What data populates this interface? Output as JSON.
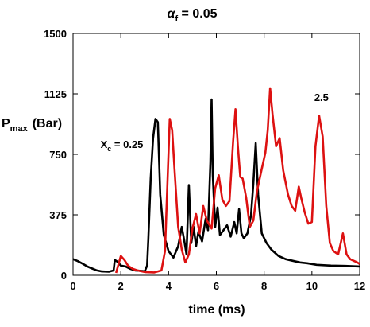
{
  "chart_data": {
    "type": "line",
    "title": {
      "symbol": "α",
      "subscript": "f",
      "rest": " = 0.05"
    },
    "xlabel": "time (ms)",
    "ylabel": {
      "main": "P",
      "subscript": "max",
      "unit": "(Bar)"
    },
    "xlim": [
      0,
      12
    ],
    "ylim": [
      0,
      1500
    ],
    "xticks": [
      0,
      2,
      4,
      6,
      8,
      10,
      12
    ],
    "yticks": [
      0,
      375,
      750,
      1125,
      1500
    ],
    "grid": false,
    "colors": {
      "series_a": "#000000",
      "series_b": "#dd1111"
    },
    "annotations": [
      {
        "text_main": "X",
        "text_sub": "c",
        "text_rest": " = 0.25",
        "x": 1.15,
        "y": 790
      },
      {
        "text_main": "2.5",
        "text_sub": "",
        "text_rest": "",
        "x": 10.1,
        "y": 1080
      }
    ],
    "series": [
      {
        "color": "#000000",
        "points": [
          [
            0.0,
            100
          ],
          [
            0.2,
            88
          ],
          [
            0.4,
            72
          ],
          [
            0.6,
            55
          ],
          [
            0.8,
            42
          ],
          [
            1.0,
            30
          ],
          [
            1.2,
            24
          ],
          [
            1.5,
            22
          ],
          [
            1.7,
            30
          ],
          [
            1.75,
            95
          ],
          [
            1.85,
            85
          ],
          [
            2.0,
            60
          ],
          [
            2.2,
            55
          ],
          [
            2.4,
            40
          ],
          [
            2.6,
            30
          ],
          [
            2.8,
            28
          ],
          [
            3.0,
            25
          ],
          [
            3.1,
            60
          ],
          [
            3.15,
            220
          ],
          [
            3.25,
            600
          ],
          [
            3.35,
            850
          ],
          [
            3.45,
            970
          ],
          [
            3.55,
            950
          ],
          [
            3.65,
            500
          ],
          [
            3.8,
            250
          ],
          [
            4.0,
            150
          ],
          [
            4.2,
            110
          ],
          [
            4.4,
            180
          ],
          [
            4.55,
            300
          ],
          [
            4.65,
            220
          ],
          [
            4.75,
            130
          ],
          [
            4.85,
            560
          ],
          [
            4.95,
            200
          ],
          [
            5.05,
            300
          ],
          [
            5.15,
            180
          ],
          [
            5.25,
            270
          ],
          [
            5.4,
            210
          ],
          [
            5.55,
            350
          ],
          [
            5.65,
            280
          ],
          [
            5.75,
            700
          ],
          [
            5.8,
            1090
          ],
          [
            5.85,
            620
          ],
          [
            5.95,
            300
          ],
          [
            6.05,
            420
          ],
          [
            6.15,
            250
          ],
          [
            6.3,
            280
          ],
          [
            6.45,
            310
          ],
          [
            6.6,
            240
          ],
          [
            6.75,
            330
          ],
          [
            6.85,
            260
          ],
          [
            6.95,
            410
          ],
          [
            7.05,
            260
          ],
          [
            7.15,
            230
          ],
          [
            7.3,
            260
          ],
          [
            7.45,
            370
          ],
          [
            7.55,
            570
          ],
          [
            7.65,
            820
          ],
          [
            7.75,
            500
          ],
          [
            7.9,
            260
          ],
          [
            8.1,
            200
          ],
          [
            8.3,
            160
          ],
          [
            8.6,
            120
          ],
          [
            8.9,
            100
          ],
          [
            9.2,
            90
          ],
          [
            9.5,
            80
          ],
          [
            9.8,
            75
          ],
          [
            10.2,
            65
          ],
          [
            10.8,
            60
          ],
          [
            11.4,
            58
          ],
          [
            12.0,
            55
          ]
        ]
      },
      {
        "color": "#dd1111",
        "points": [
          [
            1.8,
            15
          ],
          [
            2.0,
            120
          ],
          [
            2.15,
            95
          ],
          [
            2.3,
            60
          ],
          [
            2.5,
            40
          ],
          [
            2.7,
            30
          ],
          [
            3.0,
            20
          ],
          [
            3.4,
            18
          ],
          [
            3.7,
            30
          ],
          [
            3.85,
            150
          ],
          [
            3.95,
            560
          ],
          [
            4.05,
            970
          ],
          [
            4.15,
            900
          ],
          [
            4.25,
            650
          ],
          [
            4.4,
            300
          ],
          [
            4.55,
            160
          ],
          [
            4.7,
            80
          ],
          [
            4.85,
            130
          ],
          [
            5.0,
            290
          ],
          [
            5.15,
            380
          ],
          [
            5.3,
            260
          ],
          [
            5.45,
            430
          ],
          [
            5.6,
            340
          ],
          [
            5.8,
            290
          ],
          [
            5.95,
            540
          ],
          [
            6.1,
            620
          ],
          [
            6.25,
            470
          ],
          [
            6.4,
            430
          ],
          [
            6.55,
            460
          ],
          [
            6.7,
            830
          ],
          [
            6.8,
            1030
          ],
          [
            6.9,
            800
          ],
          [
            7.0,
            610
          ],
          [
            7.1,
            600
          ],
          [
            7.25,
            480
          ],
          [
            7.4,
            300
          ],
          [
            7.55,
            340
          ],
          [
            7.7,
            520
          ],
          [
            7.9,
            660
          ],
          [
            8.05,
            760
          ],
          [
            8.15,
            900
          ],
          [
            8.25,
            1160
          ],
          [
            8.35,
            1000
          ],
          [
            8.5,
            800
          ],
          [
            8.65,
            850
          ],
          [
            8.8,
            650
          ],
          [
            9.0,
            500
          ],
          [
            9.15,
            430
          ],
          [
            9.3,
            400
          ],
          [
            9.45,
            550
          ],
          [
            9.55,
            480
          ],
          [
            9.7,
            390
          ],
          [
            9.85,
            320
          ],
          [
            10.0,
            330
          ],
          [
            10.15,
            800
          ],
          [
            10.3,
            990
          ],
          [
            10.45,
            860
          ],
          [
            10.6,
            430
          ],
          [
            10.75,
            200
          ],
          [
            10.9,
            150
          ],
          [
            11.1,
            130
          ],
          [
            11.3,
            260
          ],
          [
            11.45,
            130
          ],
          [
            11.6,
            100
          ],
          [
            11.75,
            90
          ],
          [
            11.9,
            80
          ],
          [
            12.0,
            70
          ]
        ]
      }
    ]
  }
}
